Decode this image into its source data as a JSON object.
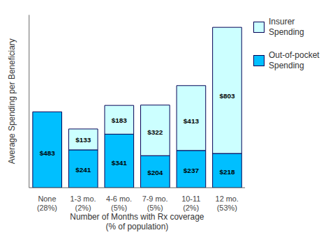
{
  "chart_data": {
    "type": "bar",
    "stacked": true,
    "categories": [
      "None\n(28%)",
      "1-3 mo.\n(2%)",
      "4-6 mo.\n(5%)",
      "7-9 mo.\n(5%)",
      "10-11\n(2%)",
      "12 mo.\n(53%)"
    ],
    "series": [
      {
        "name": "Out-of-pocket\nSpending",
        "color": "#00BFFF",
        "values": [
          483,
          241,
          341,
          204,
          237,
          218
        ],
        "value_labels": [
          "$483",
          "$241",
          "$341",
          "$204",
          "$237",
          "$218"
        ]
      },
      {
        "name": "Insurer\nSpending",
        "color": "#CCFFFF",
        "values": [
          0,
          133,
          183,
          322,
          413,
          803
        ],
        "value_labels": [
          null,
          "$133",
          "$183",
          "$322",
          "$413",
          "$803"
        ]
      }
    ],
    "xlabel": "Number of Months with Rx coverage\n(% of population)",
    "ylabel": "Average Spending per Beneficiary",
    "ylim": [
      0,
      1100
    ],
    "tick_labels": "x",
    "data_labels": true,
    "grid": false,
    "legend": "right"
  }
}
